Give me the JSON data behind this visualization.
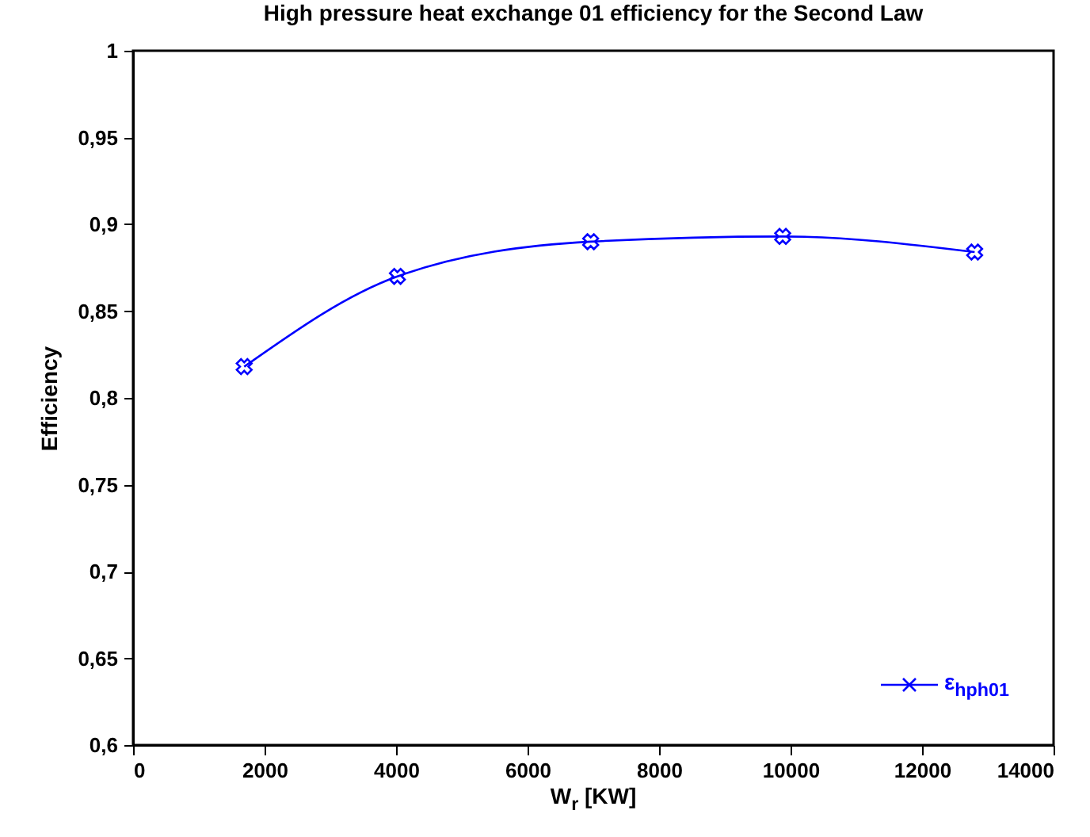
{
  "chart_data": {
    "type": "line",
    "title": "High pressure heat exchange 01 efficiency for the Second Law",
    "xlabel": "W$_{r}$  [KW]",
    "ylabel": "Efficiency",
    "x": [
      1690,
      4020,
      6960,
      9880,
      12800
    ],
    "series": [
      {
        "name": "ε$_{hph01}$",
        "color": "#0000ff",
        "values": [
          0.818,
          0.87,
          0.89,
          0.893,
          0.884
        ]
      }
    ],
    "xlim": [
      0,
      14000
    ],
    "xticks": [
      0,
      2000,
      4000,
      6000,
      8000,
      10000,
      12000,
      14000
    ],
    "ylim": [
      0.6,
      1
    ],
    "yticks": [
      {
        "value": 0.6,
        "label": "0,6"
      },
      {
        "value": 0.65,
        "label": "0,65"
      },
      {
        "value": 0.7,
        "label": "0,7"
      },
      {
        "value": 0.75,
        "label": "0,75"
      },
      {
        "value": 0.8,
        "label": "0,8"
      },
      {
        "value": 0.85,
        "label": "0,85"
      },
      {
        "value": 0.9,
        "label": "0,9"
      },
      {
        "value": 0.95,
        "label": "0,95"
      },
      {
        "value": 1,
        "label": "1"
      }
    ],
    "grid": false,
    "legend": "bottom right",
    "marker": "cross",
    "line_style": "solid"
  }
}
